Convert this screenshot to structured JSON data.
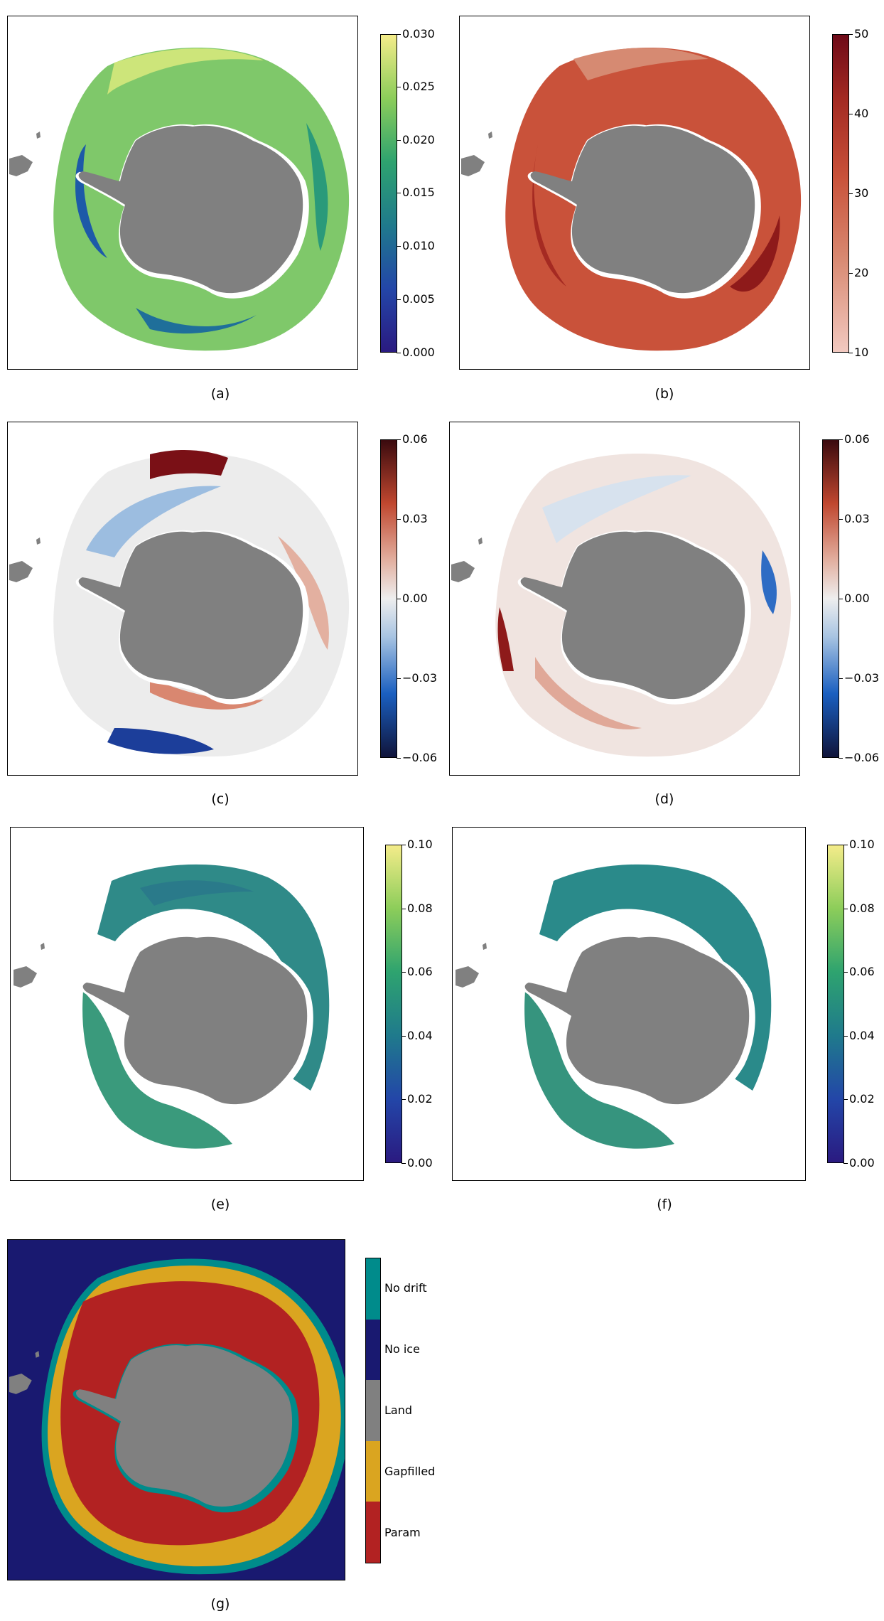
{
  "panels": [
    {
      "id": "a",
      "label": "(a)",
      "colormap": "viridis_like",
      "ticks": [
        "0.030",
        "0.025",
        "0.020",
        "0.015",
        "0.010",
        "0.005",
        "0.000"
      ]
    },
    {
      "id": "b",
      "label": "(b)",
      "colormap": "reds",
      "ticks": [
        "50",
        "40",
        "30",
        "20",
        "10"
      ]
    },
    {
      "id": "c",
      "label": "(c)",
      "colormap": "diverging",
      "ticks": [
        "0.06",
        "0.03",
        "0.00",
        "−0.03",
        "−0.06"
      ]
    },
    {
      "id": "d",
      "label": "(d)",
      "colormap": "diverging",
      "ticks": [
        "0.06",
        "0.03",
        "0.00",
        "−0.03",
        "−0.06"
      ]
    },
    {
      "id": "e",
      "label": "(e)",
      "colormap": "viridis_like",
      "ticks": [
        "0.10",
        "0.08",
        "0.06",
        "0.04",
        "0.02",
        "0.00"
      ]
    },
    {
      "id": "f",
      "label": "(f)",
      "colormap": "viridis_like",
      "ticks": [
        "0.10",
        "0.08",
        "0.06",
        "0.04",
        "0.02",
        "0.00"
      ]
    },
    {
      "id": "g",
      "label": "(g)",
      "colormap": "categorical",
      "categories": [
        "No drift",
        "No ice",
        "Land",
        "Gapfilled",
        "Param"
      ]
    }
  ],
  "colors": {
    "land": "#808080",
    "no_ice": "#191970",
    "no_drift": "#008b8b",
    "gapfilled": "#daa520",
    "param": "#b22222"
  }
}
